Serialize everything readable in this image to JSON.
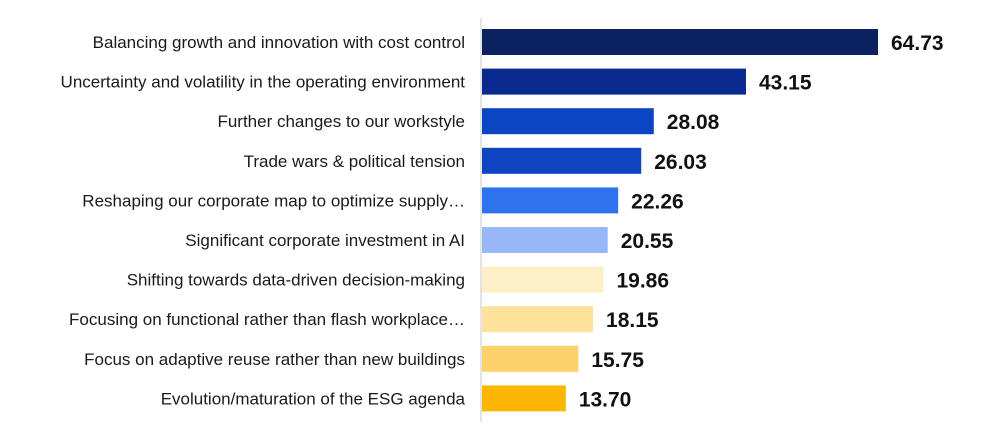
{
  "chart_data": {
    "type": "bar",
    "orientation": "horizontal",
    "categories": [
      "Balancing growth and innovation with cost control",
      "Uncertainty and volatility in the operating environment",
      "Further changes to our workstyle",
      "Trade wars & political tension",
      "Reshaping our corporate map to optimize supply…",
      "Significant corporate investment in AI",
      "Shifting towards data-driven decision-making",
      "Focusing on functional rather than flash workplace…",
      "Focus on adaptive reuse rather than new buildings",
      "Evolution/maturation of the ESG agenda"
    ],
    "values": [
      64.73,
      43.15,
      28.08,
      26.03,
      22.26,
      20.55,
      19.86,
      18.15,
      15.75,
      13.7
    ],
    "value_labels": [
      "64.73",
      "43.15",
      "28.08",
      "26.03",
      "22.26",
      "20.55",
      "19.86",
      "18.15",
      "15.75",
      "13.70"
    ],
    "colors": [
      "#0c2260",
      "#0a2a90",
      "#0a45c4",
      "#0e44c0",
      "#2f72ee",
      "#97b7f7",
      "#fdefc6",
      "#fde39a",
      "#fdd26a",
      "#fbb704"
    ],
    "xlim": [
      0,
      64.73
    ],
    "grid": false,
    "legend": "none"
  }
}
